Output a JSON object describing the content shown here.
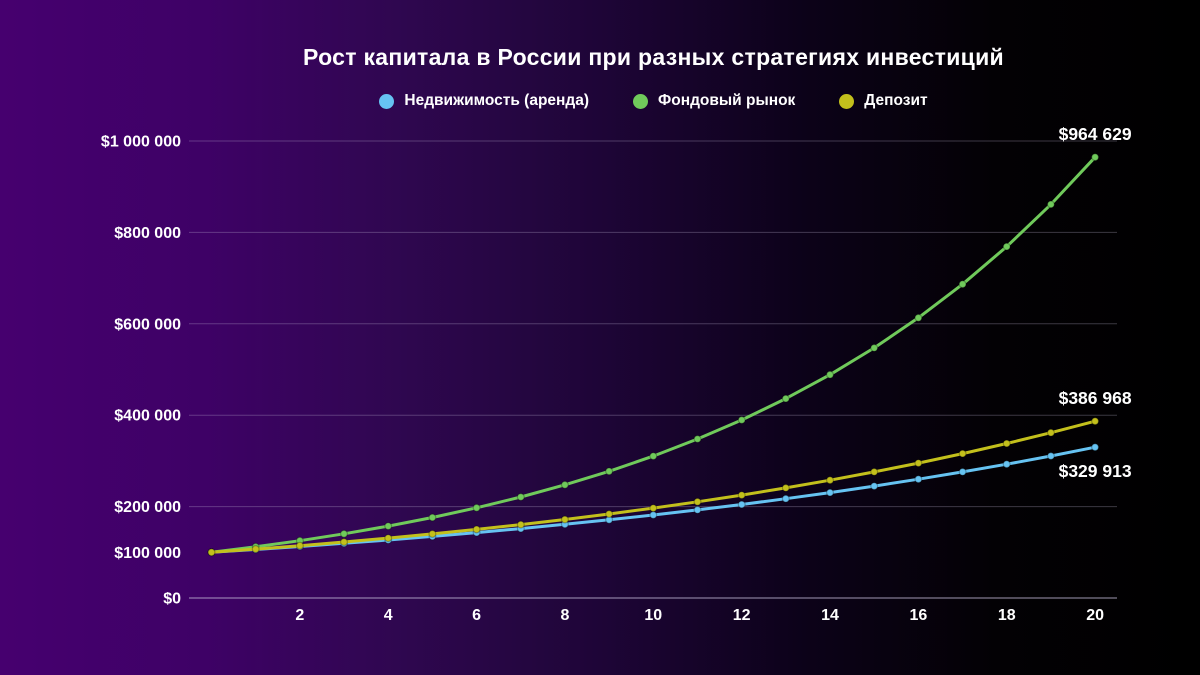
{
  "page": {
    "background_gradient": [
      "#46006F",
      "#3E0166",
      "#2F0750",
      "#1E0537",
      "#0C0219",
      "#030104",
      "#000000"
    ],
    "text_color": "#FFFFFF",
    "grid_color": "rgba(195,185,215,0.30)",
    "axis_color": "rgba(195,185,215,0.55)"
  },
  "chart_data": {
    "type": "line",
    "title": "Рост капитала в России при разных стратегиях инвестиций",
    "xlabel": "",
    "ylabel": "",
    "legend_position": "top",
    "grid": true,
    "xlim": [
      0,
      20.5
    ],
    "ylim": [
      0,
      1000000
    ],
    "x": [
      0,
      1,
      2,
      3,
      4,
      5,
      6,
      7,
      8,
      9,
      10,
      11,
      12,
      13,
      14,
      15,
      16,
      17,
      18,
      19,
      20
    ],
    "x_ticks": [
      2,
      4,
      6,
      8,
      10,
      12,
      14,
      16,
      18,
      20
    ],
    "y_ticks": [
      {
        "value": 0,
        "label": "$0",
        "grid": false
      },
      {
        "value": 100000,
        "label": "$100 000",
        "grid": false
      },
      {
        "value": 200000,
        "label": "$200 000",
        "grid": true
      },
      {
        "value": 400000,
        "label": "$400 000",
        "grid": true
      },
      {
        "value": 600000,
        "label": "$600 000",
        "grid": true
      },
      {
        "value": 800000,
        "label": "$800 000",
        "grid": true
      },
      {
        "value": 1000000,
        "label": "$1 000 000",
        "grid": true
      }
    ],
    "series": [
      {
        "name": "Недвижимость (аренда)",
        "color": "#66C3F2",
        "end_label": "$329 913",
        "end_label_position": "below",
        "values": [
          100000,
          106150,
          112678,
          119608,
          126964,
          134772,
          143061,
          151859,
          161198,
          171112,
          181636,
          192806,
          204664,
          217251,
          230612,
          244795,
          259850,
          275830,
          292794,
          310800,
          329913
        ]
      },
      {
        "name": "Фондовый рынок",
        "color": "#70CA5B",
        "end_label": "$964 629",
        "end_label_position": "above",
        "values": [
          100000,
          112000,
          125440,
          140493,
          157352,
          176234,
          197382,
          221068,
          247596,
          277308,
          310585,
          347855,
          389598,
          436349,
          488711,
          547357,
          613039,
          686604,
          768997,
          861276,
          964629
        ]
      },
      {
        "name": "Депозит",
        "color": "#C3C01C",
        "end_label": "$386 968",
        "end_label_position": "above",
        "values": [
          100000,
          107000,
          114490,
          122504,
          131080,
          140255,
          150073,
          160578,
          171819,
          183846,
          196715,
          210485,
          225219,
          240984,
          257853,
          275903,
          295216,
          315881,
          337993,
          361652,
          386968
        ]
      }
    ]
  }
}
